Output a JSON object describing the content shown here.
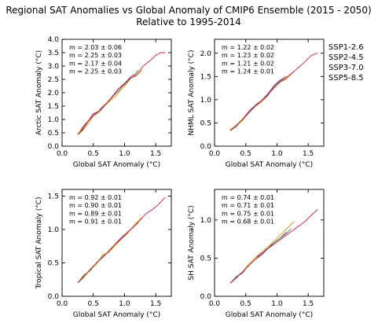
{
  "figure": {
    "title_line1": "Regional SAT Anomalies vs Global Anomaly of CMIP6 Ensemble (2015 - 2050)",
    "title_line2": "Relative to 1995-2014"
  },
  "legend": {
    "placement": "right-of-top-right-panel",
    "items": [
      {
        "label": "SSP1-2.6",
        "color": "#7b2a9e"
      },
      {
        "label": "SSP2-4.5",
        "color": "#2e8b57"
      },
      {
        "label": "SSP3-7.0",
        "color": "#d49a00"
      },
      {
        "label": "SSP5-8.5",
        "color": "#d81b3c"
      }
    ]
  },
  "chart_data": [
    {
      "type": "line",
      "xlabel": "Global SAT Anomaly (°C)",
      "ylabel": "Arctic SAT Anomaly (°C)",
      "xlim": [
        0.0,
        1.75
      ],
      "ylim": [
        0.0,
        4.0
      ],
      "xticks": [
        0.0,
        0.5,
        1.0,
        1.5
      ],
      "yticks": [
        0.0,
        0.5,
        1.0,
        1.5,
        2.0,
        2.5,
        3.0,
        3.5,
        4.0
      ],
      "tick_format": 1,
      "annotations": [
        "m =  2.03 ± 0.06",
        "m =  2.25 ± 0.03",
        "m =  2.17 ± 0.04",
        "m =  2.25 ± 0.03"
      ],
      "series": [
        {
          "name": "SSP1-2.6",
          "color": "#7b2a9e",
          "x": [
            0.27,
            0.33,
            0.42,
            0.5,
            0.58,
            0.65,
            0.72,
            0.8,
            0.88,
            0.95,
            1.02,
            1.08,
            1.15
          ],
          "y": [
            0.48,
            0.72,
            0.95,
            1.22,
            1.3,
            1.48,
            1.62,
            1.85,
            2.08,
            2.25,
            2.4,
            2.55,
            2.7
          ]
        },
        {
          "name": "SSP2-4.5",
          "color": "#2e8b57",
          "x": [
            0.25,
            0.32,
            0.4,
            0.48,
            0.55,
            0.62,
            0.7,
            0.78,
            0.85,
            0.92,
            1.0,
            1.08,
            1.15,
            1.22
          ],
          "y": [
            0.45,
            0.62,
            0.88,
            1.1,
            1.2,
            1.38,
            1.55,
            1.78,
            1.95,
            2.1,
            2.35,
            2.52,
            2.62,
            2.85
          ]
        },
        {
          "name": "SSP3-7.0",
          "color": "#d49a00",
          "x": [
            0.25,
            0.33,
            0.4,
            0.48,
            0.55,
            0.62,
            0.7,
            0.78,
            0.86,
            0.94,
            1.02,
            1.1,
            1.18,
            1.28
          ],
          "y": [
            0.42,
            0.58,
            0.8,
            1.05,
            1.28,
            1.35,
            1.55,
            1.72,
            1.88,
            2.1,
            2.3,
            2.55,
            2.62,
            2.85
          ]
        },
        {
          "name": "SSP5-8.5",
          "color": "#d81b3c",
          "x": [
            0.25,
            0.33,
            0.42,
            0.52,
            0.6,
            0.7,
            0.8,
            0.9,
            1.0,
            1.1,
            1.2,
            1.3,
            1.4,
            1.5,
            1.58,
            1.65
          ],
          "y": [
            0.45,
            0.62,
            0.95,
            1.2,
            1.3,
            1.58,
            1.82,
            2.15,
            2.3,
            2.55,
            2.68,
            3.0,
            3.18,
            3.4,
            3.5,
            3.5
          ]
        }
      ]
    },
    {
      "type": "line",
      "xlabel": "Global SAT Anomaly (°C)",
      "ylabel": "NHML SAT Anomaly (°C)",
      "xlim": [
        0.0,
        1.75
      ],
      "ylim": [
        0.0,
        2.3
      ],
      "xticks": [
        0.0,
        0.5,
        1.0,
        1.5
      ],
      "yticks": [
        0.0,
        0.5,
        1.0,
        1.5,
        2.0
      ],
      "tick_format": 1,
      "annotations": [
        "m =  1.22 ± 0.02",
        "m =  1.23 ± 0.02",
        "m =  1.21 ± 0.02",
        "m =  1.24 ± 0.01"
      ],
      "series": [
        {
          "name": "SSP1-2.6",
          "color": "#7b2a9e",
          "x": [
            0.27,
            0.35,
            0.45,
            0.55,
            0.65,
            0.75,
            0.85,
            0.95,
            1.05,
            1.15
          ],
          "y": [
            0.35,
            0.45,
            0.58,
            0.75,
            0.88,
            0.98,
            1.12,
            1.3,
            1.42,
            1.5
          ]
        },
        {
          "name": "SSP2-4.5",
          "color": "#2e8b57",
          "x": [
            0.25,
            0.35,
            0.45,
            0.55,
            0.65,
            0.75,
            0.85,
            0.95,
            1.05,
            1.15,
            1.22
          ],
          "y": [
            0.33,
            0.42,
            0.58,
            0.72,
            0.88,
            0.95,
            1.08,
            1.28,
            1.4,
            1.48,
            1.55
          ]
        },
        {
          "name": "SSP3-7.0",
          "color": "#d49a00",
          "x": [
            0.25,
            0.35,
            0.45,
            0.55,
            0.65,
            0.75,
            0.85,
            0.95,
            1.05,
            1.15,
            1.28
          ],
          "y": [
            0.32,
            0.45,
            0.55,
            0.72,
            0.85,
            0.95,
            1.1,
            1.25,
            1.38,
            1.48,
            1.62
          ]
        },
        {
          "name": "SSP5-8.5",
          "color": "#d81b3c",
          "x": [
            0.25,
            0.35,
            0.45,
            0.55,
            0.65,
            0.75,
            0.85,
            0.95,
            1.05,
            1.15,
            1.25,
            1.35,
            1.45,
            1.55,
            1.65
          ],
          "y": [
            0.35,
            0.45,
            0.58,
            0.72,
            0.85,
            0.98,
            1.1,
            1.25,
            1.38,
            1.45,
            1.58,
            1.7,
            1.82,
            1.95,
            2.0
          ]
        }
      ]
    },
    {
      "type": "line",
      "xlabel": "Global SAT Anomaly (°C)",
      "ylabel": "Tropical SAT Anomaly (°C)",
      "xlim": [
        0.0,
        1.75
      ],
      "ylim": [
        0.0,
        1.6
      ],
      "xticks": [
        0.0,
        0.5,
        1.0,
        1.5
      ],
      "yticks": [
        0.0,
        0.5,
        1.0,
        1.5
      ],
      "tick_format": 1,
      "annotations": [
        "m =  0.92 ± 0.01",
        "m =  0.90 ± 0.01",
        "m =  0.89 ± 0.01",
        "m =  0.91 ± 0.01"
      ],
      "series": [
        {
          "name": "SSP1-2.6",
          "color": "#7b2a9e",
          "x": [
            0.25,
            0.35,
            0.45,
            0.55,
            0.65,
            0.75,
            0.85,
            0.95,
            1.05,
            1.15
          ],
          "y": [
            0.2,
            0.3,
            0.4,
            0.5,
            0.58,
            0.68,
            0.78,
            0.88,
            0.96,
            1.05
          ]
        },
        {
          "name": "SSP2-4.5",
          "color": "#2e8b57",
          "x": [
            0.25,
            0.35,
            0.45,
            0.55,
            0.65,
            0.75,
            0.85,
            0.95,
            1.05,
            1.15,
            1.22
          ],
          "y": [
            0.2,
            0.32,
            0.38,
            0.5,
            0.6,
            0.66,
            0.78,
            0.86,
            0.96,
            1.04,
            1.1
          ]
        },
        {
          "name": "SSP3-7.0",
          "color": "#d49a00",
          "x": [
            0.25,
            0.35,
            0.45,
            0.55,
            0.65,
            0.75,
            0.85,
            0.95,
            1.05,
            1.15,
            1.28
          ],
          "y": [
            0.2,
            0.28,
            0.4,
            0.48,
            0.62,
            0.66,
            0.76,
            0.86,
            0.94,
            1.06,
            1.18
          ]
        },
        {
          "name": "SSP5-8.5",
          "color": "#d81b3c",
          "x": [
            0.25,
            0.35,
            0.45,
            0.55,
            0.65,
            0.75,
            0.85,
            0.95,
            1.05,
            1.15,
            1.25,
            1.35,
            1.45,
            1.55,
            1.65
          ],
          "y": [
            0.2,
            0.3,
            0.4,
            0.5,
            0.58,
            0.68,
            0.78,
            0.86,
            0.96,
            1.04,
            1.14,
            1.24,
            1.3,
            1.38,
            1.48
          ]
        }
      ]
    },
    {
      "type": "line",
      "xlabel": "Global SAT Anomaly (°C)",
      "ylabel": "SH SAT Anomaly (°C)",
      "xlim": [
        0.0,
        1.75
      ],
      "ylim": [
        0.0,
        1.4
      ],
      "xticks": [
        0.0,
        0.5,
        1.0,
        1.5
      ],
      "yticks": [
        0.0,
        0.5,
        1.0
      ],
      "tick_format": 1,
      "annotations": [
        "m =  0.74 ± 0.01",
        "m =  0.71 ± 0.01",
        "m =  0.75 ± 0.01",
        "m =  0.68 ± 0.01"
      ],
      "series": [
        {
          "name": "SSP1-2.6",
          "color": "#7b2a9e",
          "x": [
            0.25,
            0.35,
            0.45,
            0.55,
            0.65,
            0.75,
            0.85,
            0.95,
            1.05,
            1.15
          ],
          "y": [
            0.17,
            0.25,
            0.32,
            0.42,
            0.5,
            0.56,
            0.62,
            0.7,
            0.76,
            0.84
          ]
        },
        {
          "name": "SSP2-4.5",
          "color": "#2e8b57",
          "x": [
            0.25,
            0.35,
            0.45,
            0.55,
            0.65,
            0.75,
            0.85,
            0.95,
            1.05,
            1.15,
            1.22
          ],
          "y": [
            0.17,
            0.26,
            0.3,
            0.42,
            0.5,
            0.54,
            0.64,
            0.7,
            0.76,
            0.82,
            0.88
          ]
        },
        {
          "name": "SSP3-7.0",
          "color": "#d49a00",
          "x": [
            0.25,
            0.35,
            0.45,
            0.55,
            0.65,
            0.75,
            0.85,
            0.95,
            1.05,
            1.15,
            1.28
          ],
          "y": [
            0.17,
            0.24,
            0.32,
            0.42,
            0.5,
            0.58,
            0.64,
            0.72,
            0.8,
            0.88,
            0.98
          ]
        },
        {
          "name": "SSP5-8.5",
          "color": "#d81b3c",
          "x": [
            0.25,
            0.35,
            0.45,
            0.55,
            0.65,
            0.75,
            0.85,
            0.95,
            1.05,
            1.15,
            1.25,
            1.35,
            1.45,
            1.55,
            1.65
          ],
          "y": [
            0.17,
            0.24,
            0.32,
            0.4,
            0.48,
            0.54,
            0.62,
            0.68,
            0.74,
            0.8,
            0.86,
            0.92,
            0.98,
            1.06,
            1.14
          ]
        }
      ]
    }
  ]
}
